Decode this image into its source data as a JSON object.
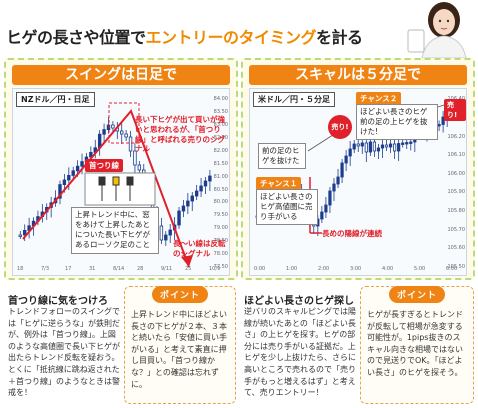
{
  "header": {
    "title_pre": "ヒゲの長さや位置で",
    "title_hl": "エントリーのタイミング",
    "title_post": "を計る"
  },
  "left_panel": {
    "banner": "スイングは日足で",
    "chart_label": "NZドル／円・日足",
    "y_ticks": [
      "84.00",
      "83.50",
      "83.00",
      "82.50",
      "82.00",
      "81.50",
      "81.00",
      "80.50",
      "80.00",
      "79.50",
      "79.00",
      "78.50",
      "78.00",
      "77.50"
    ],
    "x_ticks": [
      "18",
      "7/3",
      "17",
      "31",
      "8/14",
      "28",
      "9/11",
      "25",
      "10/9"
    ],
    "note_top": "長い下ヒゲが出て買いが強いと思われるが、「首つり線」と呼ばれる売りのシグナル",
    "pill": "首つり線",
    "box_text": "上昇トレンド中に、窓をあけて上昇したあとについた長い下ヒゲがあるローソク足のこと",
    "note_bottom": "長〜い線は反転のシグナル"
  },
  "right_panel": {
    "banner": "スキャルは５分足で",
    "chart_label": "米ドル／円・５分足",
    "y_ticks": [
      "106.40",
      "106.30",
      "106.20",
      "106.10",
      "106.00",
      "105.90",
      "105.80",
      "105.70",
      "105.60",
      "105.50"
    ],
    "x_ticks": [
      "0:00",
      "1:00",
      "2:00",
      "3:00",
      "4:00",
      "5:00",
      "6:00"
    ],
    "chance1": "チャンス１",
    "chance1_text": "ほどよい長さのヒゲ高値圏に売り手がいる",
    "chance2": "チャンス２",
    "chance2_text": "ほどよい長さのヒゲ前の足の上ヒゲを抜けた!",
    "sell1": "売り!",
    "sell2": "売り!",
    "prev_note": "前の足のヒゲを抜けた",
    "sell_signal": "長めの陽線が連続"
  },
  "sections": {
    "left_head": "首つり線に気をつけろ",
    "left_body": "トレンドフォローのスイングでは「ヒゲに逆らうな」が鉄則だが、例外は「首つり線」。上図のような高値圏で長い下ヒゲが出たらトレンド反転を疑おう。とくに「抵抗線に跳ね返された＋首つり線」のようなときは警戒を！",
    "point_label": "ポイント",
    "point_left": "上昇トレンド中にほどよい長さの下ヒゲが２本、３本と続いたら「安値に買い手がいる」と考えて素直に押し目買い。「首つり線かな？」との確認は忘れずに。",
    "right_head": "ほどよい長さのヒゲ探し",
    "right_body": "逆バリのスキャルピングでは陽線が続いたあとの「ほどよい長さ」の上ヒゲを探す。ヒゲの部分には売り手がいる証拠だ。上ヒゲを少し上抜けたら、さらに高いところで売れるので「売り手がもっと増えるはず」と考えて、売りエントリー！",
    "point_right": "ヒゲが長すぎるとトレンドが反転して相場が急変する可能性が。1pips抜きのスキャル向きな相場ではないので見送りでOK。「ほどよい長さ」のヒゲを探そう。"
  },
  "colors": {
    "accent_orange": "#ef8414",
    "alert_red": "#e0202a",
    "candle_blue": "#1c3c8c",
    "panel_border": "#b7dc7a"
  }
}
